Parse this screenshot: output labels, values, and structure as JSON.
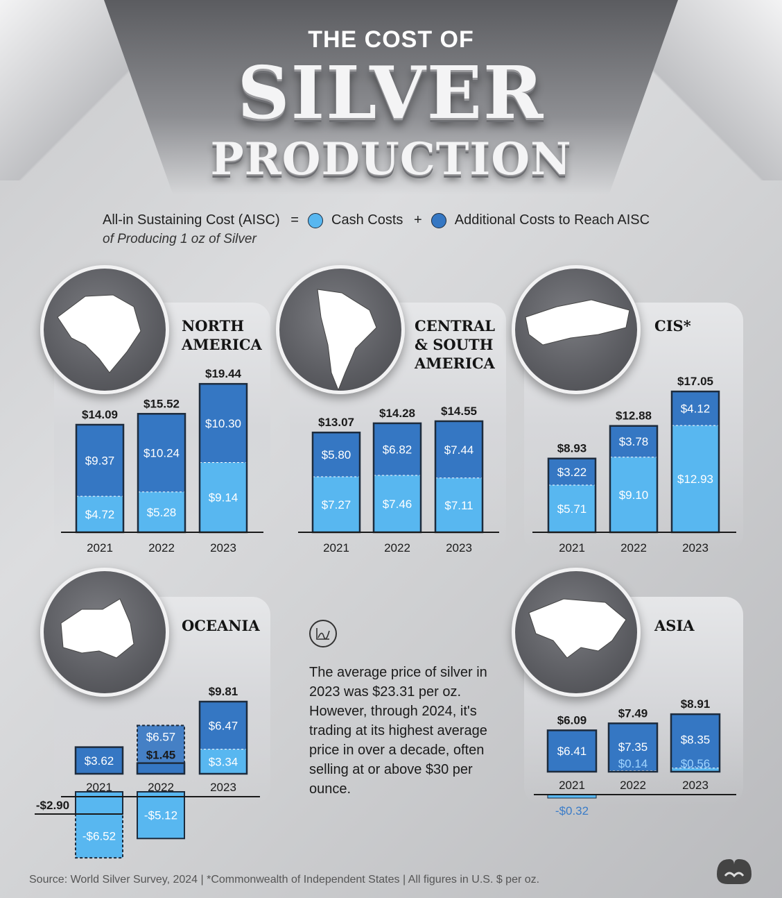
{
  "header": {
    "title_top": "THE COST OF",
    "title_main": "SILVER",
    "title_bottom": "PRODUCTION"
  },
  "legend": {
    "aisc_label": "All-in Sustaining Cost (AISC)",
    "equals": "=",
    "plus": "+",
    "cash_label": "Cash Costs",
    "additional_label": "Additional Costs to Reach AISC",
    "subtitle": "of Producing 1 oz of Silver"
  },
  "colors": {
    "cash": "#58b7f0",
    "additional": "#3577c3",
    "outline": "#1d2b3c"
  },
  "chart_data": [
    {
      "type": "bar",
      "region": "NORTH AMERICA",
      "region_lines": [
        "NORTH",
        "AMERICA"
      ],
      "categories": [
        "2021",
        "2022",
        "2023"
      ],
      "series": [
        {
          "name": "Cash Costs",
          "values": [
            4.72,
            5.28,
            9.14
          ],
          "labels": [
            "$4.72",
            "$5.28",
            "$9.14"
          ]
        },
        {
          "name": "Additional Costs to Reach AISC",
          "values": [
            9.37,
            10.24,
            10.3
          ],
          "labels": [
            "$9.37",
            "$10.24",
            "$10.30"
          ]
        }
      ],
      "totals": [
        14.09,
        15.52,
        19.44
      ],
      "total_labels": [
        "$14.09",
        "$15.52",
        "$19.44"
      ]
    },
    {
      "type": "bar",
      "region": "CENTRAL & SOUTH AMERICA",
      "region_lines": [
        "CENTRAL",
        "& SOUTH",
        "AMERICA"
      ],
      "categories": [
        "2021",
        "2022",
        "2023"
      ],
      "series": [
        {
          "name": "Cash Costs",
          "values": [
            7.27,
            7.46,
            7.11
          ],
          "labels": [
            "$7.27",
            "$7.46",
            "$7.11"
          ]
        },
        {
          "name": "Additional Costs to Reach AISC",
          "values": [
            5.8,
            6.82,
            7.44
          ],
          "labels": [
            "$5.80",
            "$6.82",
            "$7.44"
          ]
        }
      ],
      "totals": [
        13.07,
        14.28,
        14.55
      ],
      "total_labels": [
        "$13.07",
        "$14.28",
        "$14.55"
      ]
    },
    {
      "type": "bar",
      "region": "CIS*",
      "region_lines": [
        "CIS*"
      ],
      "categories": [
        "2021",
        "2022",
        "2023"
      ],
      "series": [
        {
          "name": "Cash Costs",
          "values": [
            5.71,
            9.1,
            12.93
          ],
          "labels": [
            "$5.71",
            "$9.10",
            "$12.93"
          ]
        },
        {
          "name": "Additional Costs to Reach AISC",
          "values": [
            3.22,
            3.78,
            4.12
          ],
          "labels": [
            "$3.22",
            "$3.78",
            "$4.12"
          ]
        }
      ],
      "totals": [
        8.93,
        12.88,
        17.05
      ],
      "total_labels": [
        "$8.93",
        "$12.88",
        "$17.05"
      ]
    },
    {
      "type": "bar",
      "region": "OCEANIA",
      "region_lines": [
        "OCEANIA"
      ],
      "categories": [
        "2021",
        "2022",
        "2023"
      ],
      "series": [
        {
          "name": "Cash Costs",
          "values": [
            -6.52,
            -5.12,
            3.34
          ],
          "labels": [
            "-$6.52",
            "-$5.12",
            "$3.34"
          ]
        },
        {
          "name": "Additional Costs to Reach AISC",
          "values": [
            3.62,
            6.57,
            6.47
          ],
          "labels": [
            "$3.62",
            "$6.57",
            "$6.47"
          ]
        }
      ],
      "totals": [
        -2.9,
        1.45,
        9.81
      ],
      "total_labels": [
        "-$2.90",
        "$1.45",
        "$9.81"
      ]
    },
    {
      "type": "bar",
      "region": "ASIA",
      "region_lines": [
        "ASIA"
      ],
      "categories": [
        "2021",
        "2022",
        "2023"
      ],
      "series": [
        {
          "name": "Cash Costs",
          "values": [
            -0.32,
            0.14,
            0.56
          ],
          "labels": [
            "-$0.32",
            "$0.14",
            "$0.56"
          ]
        },
        {
          "name": "Additional Costs to Reach AISC",
          "values": [
            6.41,
            7.35,
            8.35
          ],
          "labels": [
            "$6.41",
            "$7.35",
            "$8.35"
          ]
        }
      ],
      "totals": [
        6.09,
        7.49,
        8.91
      ],
      "total_labels": [
        "$6.09",
        "$7.49",
        "$8.91"
      ]
    }
  ],
  "note": {
    "icon": "price-chart-icon",
    "text": "The average price of silver in 2023 was $23.31 per oz. However, through 2024, it's trading at its highest average price in over a decade, often selling at or above $30 per ounce."
  },
  "footer": {
    "source": "Source: World Silver Survey, 2024 | *Commonwealth of Independent States | All figures in U.S. $ per oz."
  },
  "logo": {
    "icon": "visual-capitalist-logo-icon"
  }
}
